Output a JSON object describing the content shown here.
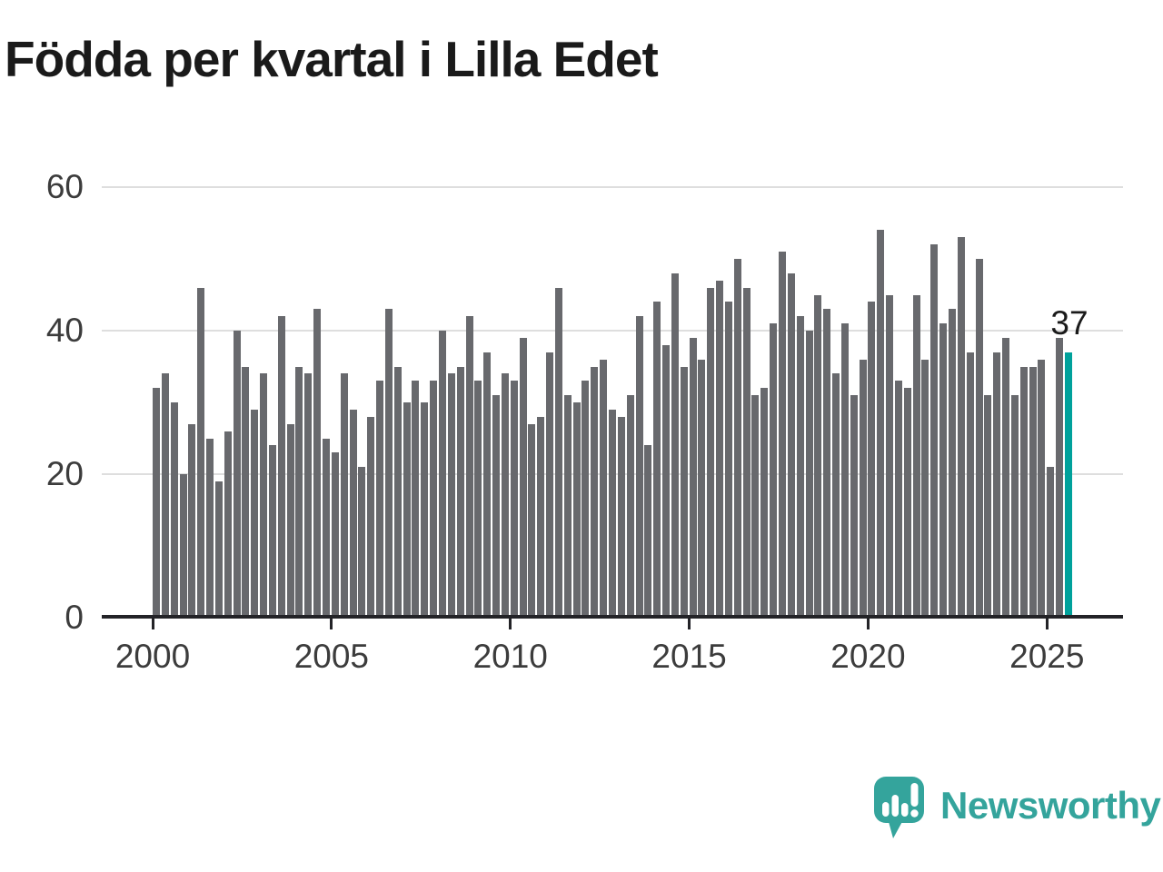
{
  "chart_data": {
    "type": "bar",
    "title": "Födda per kvartal i Lilla Edet",
    "xlabel": "",
    "ylabel": "",
    "frequency": "quarterly",
    "start_period": "2000 Q1",
    "end_period": "2025 Q3",
    "ylim": [
      0,
      60
    ],
    "grid": "horizontal",
    "y_ticks": [
      0,
      20,
      40,
      60
    ],
    "x_tick_labels": [
      "2000",
      "2005",
      "2010",
      "2015",
      "2020",
      "2025"
    ],
    "series": [
      {
        "name": "Födda per kvartal",
        "values": [
          32,
          34,
          30,
          20,
          27,
          46,
          25,
          19,
          26,
          40,
          35,
          29,
          34,
          24,
          42,
          27,
          35,
          34,
          43,
          25,
          23,
          34,
          29,
          21,
          28,
          33,
          43,
          35,
          30,
          33,
          30,
          33,
          40,
          34,
          35,
          42,
          33,
          37,
          31,
          34,
          33,
          39,
          27,
          28,
          37,
          46,
          31,
          30,
          33,
          35,
          36,
          29,
          28,
          31,
          42,
          24,
          44,
          38,
          48,
          35,
          39,
          36,
          46,
          47,
          44,
          50,
          46,
          31,
          32,
          41,
          51,
          48,
          42,
          40,
          45,
          43,
          34,
          41,
          31,
          36,
          44,
          54,
          45,
          33,
          32,
          45,
          36,
          52,
          41,
          43,
          53,
          37,
          50,
          31,
          37,
          39,
          31,
          35,
          35,
          36,
          21,
          39,
          37
        ]
      }
    ],
    "highlight": {
      "index": 102,
      "period": "2025 Q3",
      "value": 37,
      "label": "37"
    }
  },
  "colors": {
    "bar": "#68696d",
    "highlight": "#00a19b",
    "grid": "#dedede",
    "axis": "#232327",
    "title_text": "#1a1a1a",
    "tick_text": "#3c3c3c",
    "logo_teal": "#34a49c"
  },
  "branding": {
    "name": "Newsworthy",
    "icon": "speech-bubble-bar-chart-exclamation"
  }
}
